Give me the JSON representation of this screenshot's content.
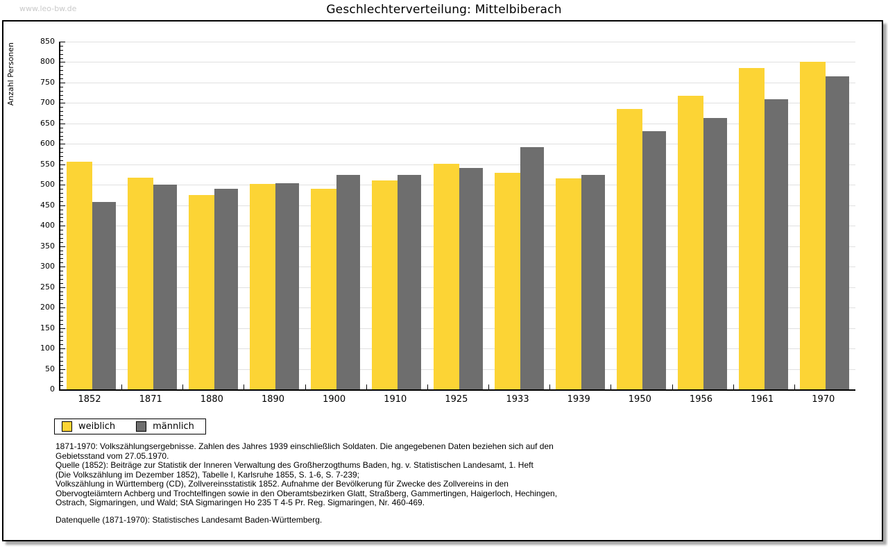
{
  "watermark": "www.leo-bw.de",
  "title": "Geschlechterverteilung: Mittelbiberach",
  "chart_data": {
    "type": "bar",
    "title": "Geschlechterverteilung: Mittelbiberach",
    "ylabel": "Anzahl Personen",
    "xlabel": "",
    "ylim": [
      0,
      850
    ],
    "ytick_interval": 50,
    "minor_tick_interval": 10,
    "grid": true,
    "legend_position": "bottom-left",
    "categories": [
      "1852",
      "1871",
      "1880",
      "1890",
      "1900",
      "1910",
      "1925",
      "1933",
      "1939",
      "1950",
      "1956",
      "1961",
      "1970"
    ],
    "series": [
      {
        "name": "weiblich",
        "color": "#fcd435",
        "values": [
          557,
          518,
          475,
          503,
          490,
          510,
          552,
          530,
          516,
          685,
          718,
          785,
          801
        ]
      },
      {
        "name": "männlich",
        "color": "#6e6e6e",
        "values": [
          458,
          501,
          491,
          504,
          525,
          525,
          541,
          592,
          525,
          631,
          663,
          710,
          765
        ]
      }
    ]
  },
  "colors": {
    "bar_weiblich": "#fcd435",
    "bar_maennlich": "#6e6e6e",
    "gridline": "#e0e0e0",
    "watermark": "#c9c9c9",
    "axis": "#000000"
  },
  "footnotes": [
    "1871-1970: Volkszählungsergebnisse. Zahlen des Jahres 1939 einschließlich Soldaten. Die angegebenen Daten beziehen sich auf den",
    "Gebietsstand vom 27.05.1970.",
    "Quelle (1852): Beiträge zur Statistik der Inneren Verwaltung des Großherzogthums Baden, hg. v. Statistischen Landesamt, 1. Heft",
    "(Die Volkszählung im Dezember 1852), Tabelle I, Karlsruhe 1855, S. 1-6, S. 7-239;",
    "Volkszählung in Württemberg (CD), Zollvereinsstatistik 1852. Aufnahme der Bevölkerung für Zwecke des Zollvereins in den",
    "Obervogteiämtern Achberg und Trochtelfingen sowie in den Oberamtsbezirken Glatt, Straßberg, Gammertingen, Haigerloch, Hechingen,",
    "Ostrach, Sigmaringen, und Wald; StA Sigmaringen Ho 235 T 4-5 Pr. Reg. Sigmaringen, Nr. 460-469."
  ],
  "datasource": "Datenquelle (1871-1970): Statistisches Landesamt Baden-Württemberg."
}
